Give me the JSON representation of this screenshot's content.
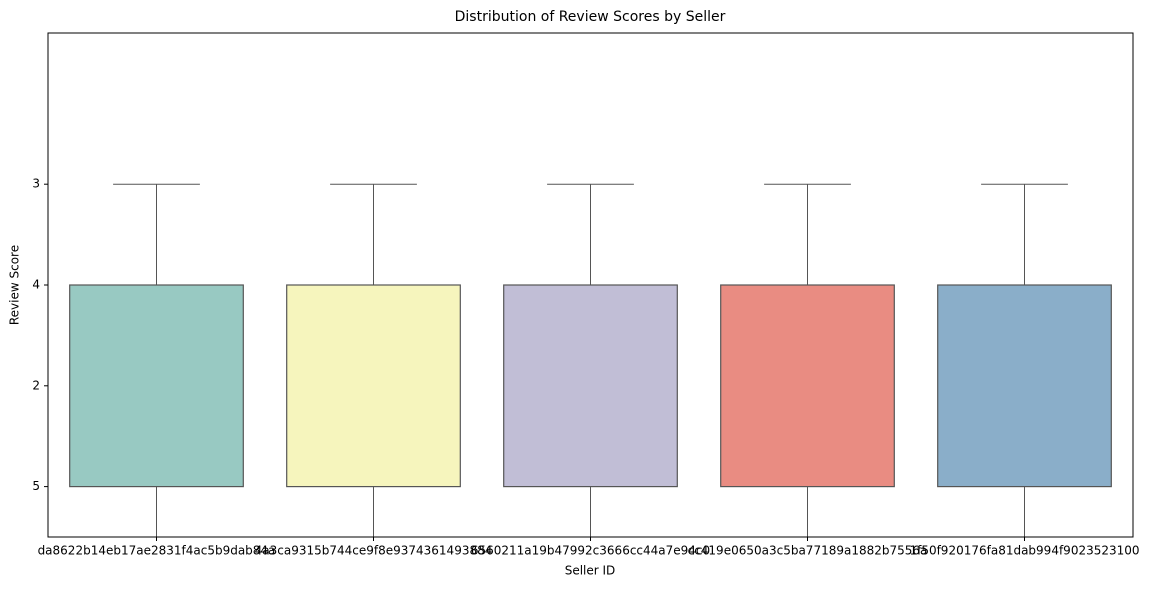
{
  "chart_data": {
    "type": "box",
    "title": "Distribution of Review Scores by Seller",
    "x_label": "Seller ID",
    "y_label": "Review Score",
    "categories": [
      "da8622b14eb17ae2831f4ac5b9dab84a",
      "4a3ca9315b744ce9f8e9374361493884",
      "6560211a19b47992c3666cc44a7e94c0",
      "cc419e0650a3c5ba77189a1882b7556a",
      "1f50f920176fa81dab994f9023523100"
    ],
    "colors": [
      "#98c9c2",
      "#f6f5bd",
      "#c1bed6",
      "#e98c82",
      "#8aaec9"
    ],
    "boxes": [
      {
        "whisker_low": -0.5,
        "q1": 0,
        "q3": 2,
        "whisker_high": 3
      },
      {
        "whisker_low": -0.5,
        "q1": 0,
        "q3": 2,
        "whisker_high": 3
      },
      {
        "whisker_low": -0.5,
        "q1": 0,
        "q3": 2,
        "whisker_high": 3
      },
      {
        "whisker_low": -0.5,
        "q1": 0,
        "q3": 2,
        "whisker_high": 3
      },
      {
        "whisker_low": -0.5,
        "q1": 0,
        "q3": 2,
        "whisker_high": 3
      }
    ],
    "ylim": [
      -0.5,
      4.5
    ],
    "yticks": [
      {
        "value": 0,
        "label": "5"
      },
      {
        "value": 1,
        "label": "2"
      },
      {
        "value": 2,
        "label": "4"
      },
      {
        "value": 3,
        "label": "3"
      }
    ]
  }
}
